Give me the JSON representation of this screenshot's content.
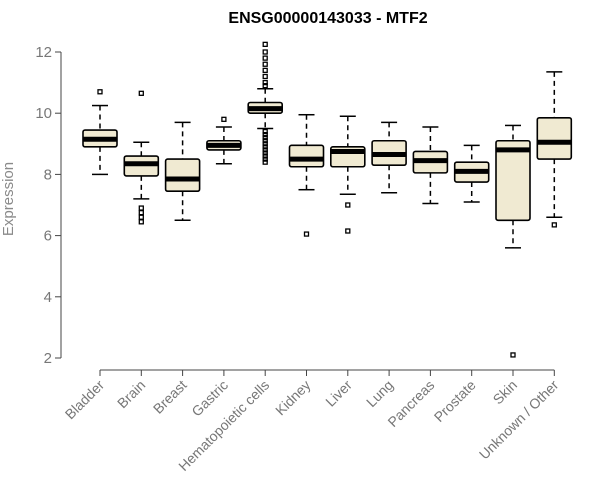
{
  "chart_data": {
    "type": "boxplot",
    "title": "ENSG00000143033 - MTF2",
    "xlabel": "",
    "ylabel": "Expression",
    "ylim": [
      2,
      12
    ],
    "yticks": [
      2,
      4,
      6,
      8,
      10,
      12
    ],
    "grid": false,
    "colors": {
      "box_fill": "#f0ead2",
      "stroke": "#000000",
      "axis": "#444444",
      "label": "#777777"
    },
    "categories": [
      "Bladder",
      "Brain",
      "Breast",
      "Gastric",
      "Hematopoietic cells",
      "Kidney",
      "Liver",
      "Lung",
      "Pancreas",
      "Prostate",
      "Skin",
      "Unknown / Other"
    ],
    "boxes": [
      {
        "name": "Bladder",
        "whisker_low": 8.0,
        "q1": 8.9,
        "median": 9.15,
        "q3": 9.45,
        "whisker_high": 10.25,
        "outliers": [
          10.7
        ]
      },
      {
        "name": "Brain",
        "whisker_low": 7.2,
        "q1": 7.95,
        "median": 8.35,
        "q3": 8.6,
        "whisker_high": 9.05,
        "outliers": [
          10.65,
          6.9,
          6.75,
          6.6,
          6.45
        ]
      },
      {
        "name": "Breast",
        "whisker_low": 6.5,
        "q1": 7.45,
        "median": 7.85,
        "q3": 8.5,
        "whisker_high": 9.7,
        "outliers": []
      },
      {
        "name": "Gastric",
        "whisker_low": 8.35,
        "q1": 8.8,
        "median": 8.95,
        "q3": 9.1,
        "whisker_high": 9.55,
        "outliers": [
          9.8
        ]
      },
      {
        "name": "Hematopoietic cells",
        "whisker_low": 9.5,
        "q1": 10.0,
        "median": 10.15,
        "q3": 10.35,
        "whisker_high": 10.8,
        "outliers": [
          12.25,
          12.0,
          11.8,
          11.6,
          11.4,
          11.2,
          11.0,
          10.9,
          9.4,
          9.3,
          9.2,
          9.1,
          9.0,
          8.9,
          8.8,
          8.7,
          8.6,
          8.5,
          8.4
        ]
      },
      {
        "name": "Kidney",
        "whisker_low": 7.5,
        "q1": 8.25,
        "median": 8.5,
        "q3": 8.95,
        "whisker_high": 9.95,
        "outliers": [
          6.05
        ]
      },
      {
        "name": "Liver",
        "whisker_low": 7.35,
        "q1": 8.25,
        "median": 8.75,
        "q3": 8.9,
        "whisker_high": 9.9,
        "outliers": [
          7.0,
          6.15
        ]
      },
      {
        "name": "Lung",
        "whisker_low": 7.4,
        "q1": 8.3,
        "median": 8.65,
        "q3": 9.1,
        "whisker_high": 9.7,
        "outliers": []
      },
      {
        "name": "Pancreas",
        "whisker_low": 7.05,
        "q1": 8.05,
        "median": 8.45,
        "q3": 8.75,
        "whisker_high": 9.55,
        "outliers": []
      },
      {
        "name": "Prostate",
        "whisker_low": 7.1,
        "q1": 7.75,
        "median": 8.1,
        "q3": 8.4,
        "whisker_high": 8.95,
        "outliers": []
      },
      {
        "name": "Skin",
        "whisker_low": 5.6,
        "q1": 6.5,
        "median": 8.8,
        "q3": 9.1,
        "whisker_high": 9.6,
        "outliers": [
          2.1
        ]
      },
      {
        "name": "Unknown / Other",
        "whisker_low": 6.6,
        "q1": 8.5,
        "median": 9.05,
        "q3": 9.85,
        "whisker_high": 11.35,
        "outliers": [
          6.35
        ]
      }
    ]
  }
}
